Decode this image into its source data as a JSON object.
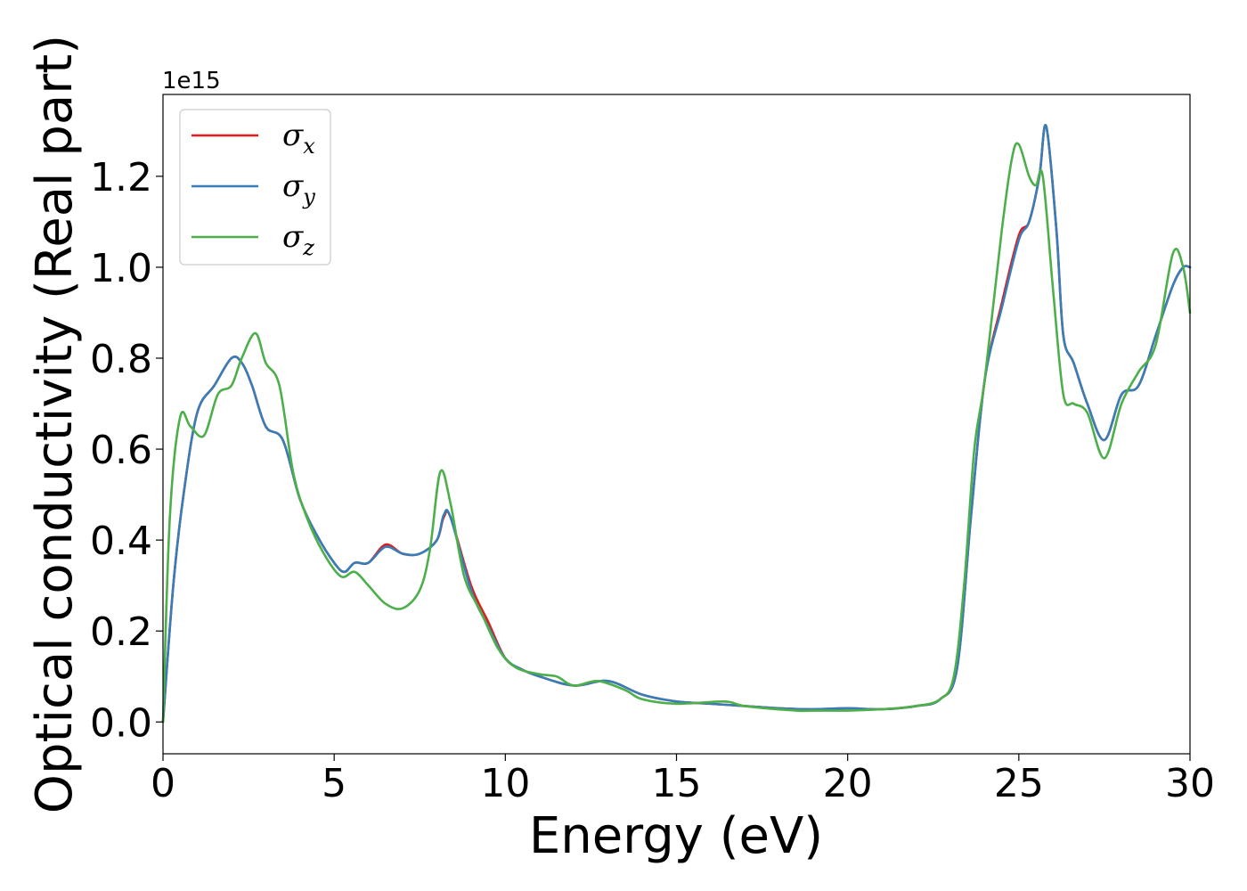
{
  "chart_data": {
    "type": "line",
    "title": "",
    "xlabel": "Energy (eV)",
    "ylabel": "Optical conductivity (Real part)",
    "y_offset_label": "1e15",
    "xlim": [
      0,
      30
    ],
    "ylim": [
      -0.07,
      1.38
    ],
    "x_ticks": [
      0,
      5,
      10,
      15,
      20,
      25,
      30
    ],
    "x_tick_labels": [
      "0",
      "5",
      "10",
      "15",
      "20",
      "25",
      "30"
    ],
    "y_ticks": [
      0.0,
      0.2,
      0.4,
      0.6,
      0.8,
      1.0,
      1.2
    ],
    "y_tick_labels": [
      "0.0",
      "0.2",
      "0.4",
      "0.6",
      "0.8",
      "1.0",
      "1.2"
    ],
    "grid": false,
    "legend_position": "top-left",
    "series": [
      {
        "name": "σx",
        "legend_base": "σ",
        "legend_sub": "x",
        "color": "#e41a1c",
        "points": [
          [
            0,
            0
          ],
          [
            0.3,
            0.3
          ],
          [
            0.6,
            0.5
          ],
          [
            1,
            0.68
          ],
          [
            1.5,
            0.74
          ],
          [
            2,
            0.8
          ],
          [
            2.3,
            0.79
          ],
          [
            2.6,
            0.74
          ],
          [
            3,
            0.65
          ],
          [
            3.5,
            0.62
          ],
          [
            4,
            0.49
          ],
          [
            4.5,
            0.41
          ],
          [
            5,
            0.35
          ],
          [
            5.3,
            0.33
          ],
          [
            5.6,
            0.35
          ],
          [
            6,
            0.35
          ],
          [
            6.5,
            0.39
          ],
          [
            7,
            0.37
          ],
          [
            7.5,
            0.37
          ],
          [
            8,
            0.4
          ],
          [
            8.2,
            0.45
          ],
          [
            8.4,
            0.45
          ],
          [
            9,
            0.3
          ],
          [
            9.5,
            0.22
          ],
          [
            10,
            0.14
          ],
          [
            10.5,
            0.115
          ],
          [
            11,
            0.1
          ],
          [
            12,
            0.08
          ],
          [
            13,
            0.09
          ],
          [
            14,
            0.06
          ],
          [
            15,
            0.045
          ],
          [
            16,
            0.04
          ],
          [
            17,
            0.035
          ],
          [
            18,
            0.03
          ],
          [
            19,
            0.028
          ],
          [
            20,
            0.03
          ],
          [
            21,
            0.028
          ],
          [
            22,
            0.035
          ],
          [
            22.7,
            0.05
          ],
          [
            23.2,
            0.12
          ],
          [
            23.6,
            0.45
          ],
          [
            24,
            0.75
          ],
          [
            24.5,
            0.92
          ],
          [
            25,
            1.07
          ],
          [
            25.3,
            1.1
          ],
          [
            25.6,
            1.2
          ],
          [
            25.8,
            1.31
          ],
          [
            26.1,
            1.08
          ],
          [
            26.3,
            0.85
          ],
          [
            26.6,
            0.79
          ],
          [
            27,
            0.7
          ],
          [
            27.5,
            0.62
          ],
          [
            28,
            0.72
          ],
          [
            28.5,
            0.74
          ],
          [
            29,
            0.85
          ],
          [
            29.5,
            0.96
          ],
          [
            29.8,
            1.0
          ],
          [
            30,
            1.0
          ]
        ]
      },
      {
        "name": "σy",
        "legend_base": "σ",
        "legend_sub": "y",
        "color": "#377eb8",
        "points": [
          [
            0,
            0
          ],
          [
            0.3,
            0.3
          ],
          [
            0.6,
            0.5
          ],
          [
            1,
            0.68
          ],
          [
            1.5,
            0.74
          ],
          [
            2,
            0.8
          ],
          [
            2.3,
            0.79
          ],
          [
            2.6,
            0.74
          ],
          [
            3,
            0.65
          ],
          [
            3.5,
            0.62
          ],
          [
            4,
            0.49
          ],
          [
            4.5,
            0.41
          ],
          [
            5,
            0.35
          ],
          [
            5.3,
            0.33
          ],
          [
            5.6,
            0.35
          ],
          [
            6,
            0.35
          ],
          [
            6.5,
            0.385
          ],
          [
            7,
            0.37
          ],
          [
            7.5,
            0.37
          ],
          [
            8,
            0.4
          ],
          [
            8.2,
            0.455
          ],
          [
            8.4,
            0.45
          ],
          [
            9,
            0.29
          ],
          [
            9.5,
            0.21
          ],
          [
            10,
            0.14
          ],
          [
            10.5,
            0.115
          ],
          [
            11,
            0.1
          ],
          [
            12,
            0.08
          ],
          [
            13,
            0.09
          ],
          [
            14,
            0.06
          ],
          [
            15,
            0.045
          ],
          [
            16,
            0.04
          ],
          [
            17,
            0.035
          ],
          [
            18,
            0.03
          ],
          [
            19,
            0.028
          ],
          [
            20,
            0.03
          ],
          [
            21,
            0.028
          ],
          [
            22,
            0.035
          ],
          [
            22.7,
            0.05
          ],
          [
            23.2,
            0.12
          ],
          [
            23.6,
            0.45
          ],
          [
            24,
            0.75
          ],
          [
            24.5,
            0.91
          ],
          [
            25,
            1.06
          ],
          [
            25.3,
            1.1
          ],
          [
            25.6,
            1.2
          ],
          [
            25.8,
            1.31
          ],
          [
            26.1,
            1.08
          ],
          [
            26.3,
            0.85
          ],
          [
            26.6,
            0.79
          ],
          [
            27,
            0.7
          ],
          [
            27.5,
            0.62
          ],
          [
            28,
            0.72
          ],
          [
            28.5,
            0.74
          ],
          [
            29,
            0.85
          ],
          [
            29.5,
            0.96
          ],
          [
            29.8,
            1.0
          ],
          [
            30,
            1.0
          ]
        ]
      },
      {
        "name": "σz",
        "legend_base": "σ",
        "legend_sub": "z",
        "color": "#4daf4a",
        "points": [
          [
            0,
            0
          ],
          [
            0.2,
            0.45
          ],
          [
            0.5,
            0.67
          ],
          [
            0.8,
            0.65
          ],
          [
            1.2,
            0.63
          ],
          [
            1.6,
            0.72
          ],
          [
            2,
            0.74
          ],
          [
            2.3,
            0.8
          ],
          [
            2.7,
            0.855
          ],
          [
            3,
            0.79
          ],
          [
            3.4,
            0.74
          ],
          [
            3.8,
            0.55
          ],
          [
            4.2,
            0.45
          ],
          [
            4.7,
            0.37
          ],
          [
            5.2,
            0.32
          ],
          [
            5.6,
            0.33
          ],
          [
            6,
            0.3
          ],
          [
            6.5,
            0.26
          ],
          [
            7,
            0.25
          ],
          [
            7.5,
            0.29
          ],
          [
            7.8,
            0.38
          ],
          [
            8.1,
            0.55
          ],
          [
            8.4,
            0.48
          ],
          [
            8.8,
            0.32
          ],
          [
            9.3,
            0.24
          ],
          [
            9.8,
            0.16
          ],
          [
            10.3,
            0.12
          ],
          [
            11,
            0.105
          ],
          [
            11.5,
            0.1
          ],
          [
            12,
            0.08
          ],
          [
            12.7,
            0.09
          ],
          [
            13.5,
            0.07
          ],
          [
            14,
            0.05
          ],
          [
            15,
            0.04
          ],
          [
            16.4,
            0.045
          ],
          [
            17,
            0.035
          ],
          [
            18.5,
            0.025
          ],
          [
            19,
            0.025
          ],
          [
            20,
            0.025
          ],
          [
            21,
            0.028
          ],
          [
            22,
            0.035
          ],
          [
            22.7,
            0.05
          ],
          [
            23.1,
            0.1
          ],
          [
            23.4,
            0.3
          ],
          [
            23.7,
            0.6
          ],
          [
            24,
            0.75
          ],
          [
            24.5,
            1.08
          ],
          [
            24.8,
            1.24
          ],
          [
            25,
            1.27
          ],
          [
            25.3,
            1.2
          ],
          [
            25.5,
            1.18
          ],
          [
            25.7,
            1.2
          ],
          [
            26,
            0.95
          ],
          [
            26.3,
            0.72
          ],
          [
            26.6,
            0.7
          ],
          [
            27,
            0.68
          ],
          [
            27.5,
            0.58
          ],
          [
            28,
            0.7
          ],
          [
            28.5,
            0.77
          ],
          [
            29,
            0.83
          ],
          [
            29.5,
            1.03
          ],
          [
            29.8,
            1.0
          ],
          [
            30,
            0.9
          ]
        ]
      }
    ]
  }
}
